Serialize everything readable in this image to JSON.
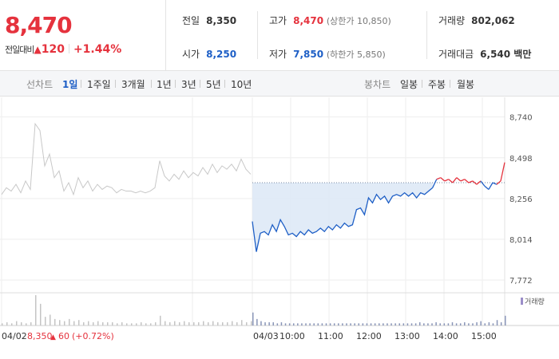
{
  "summary": {
    "price": "8,470",
    "change_label": "전일대비",
    "change_icon": "up-triangle-icon",
    "change_value": "120",
    "change_percent": "+1.44%",
    "prev_close": {
      "label": "전일",
      "value": "8,350"
    },
    "open": {
      "label": "시가",
      "value": "8,250"
    },
    "high": {
      "label": "고가",
      "value": "8,470",
      "note": "(상한가 10,850)"
    },
    "low": {
      "label": "저가",
      "value": "7,850",
      "note": "(하한가 5,850)"
    },
    "volume": {
      "label": "거래량",
      "value": "802,062"
    },
    "amount": {
      "label": "거래대금",
      "value": "6,540 백만"
    }
  },
  "toolbar": {
    "line_chart_label": "선차트",
    "periods": [
      "1일",
      "1주일",
      "3개월",
      "1년",
      "3년",
      "5년",
      "10년"
    ],
    "active_period": "1일",
    "candle_chart_label": "봉차트",
    "candles": [
      "일봉",
      "주봉",
      "월봉"
    ]
  },
  "colors": {
    "up": "#e5323d",
    "down": "#1e5fc6",
    "prev_day_line": "#c8c8c8",
    "fill": "#dce8f6"
  },
  "chart_data": {
    "type": "line",
    "y_ticks": [
      7772,
      8014,
      8256,
      8498,
      8740
    ],
    "y_tick_labels": [
      "7,772",
      "8,014",
      "8,256",
      "8,498",
      "8,740"
    ],
    "ylim": [
      7720,
      8800
    ],
    "baseline": 8350,
    "x_labels": [
      "04/03",
      "10:00",
      "11:00",
      "12:00",
      "13:00",
      "14:00",
      "15:00"
    ],
    "prev_day_label": "04/02",
    "prev_day_info": {
      "price": "8,350",
      "change": "60",
      "percent": "(+0.72%)"
    },
    "volume_legend": "거래량",
    "grid": true,
    "series": [
      {
        "values": [
          8280,
          8320,
          8300,
          8340,
          8290,
          8360,
          8310,
          8700,
          8660,
          8450,
          8520,
          8380,
          8420,
          8300,
          8350,
          8280,
          8380,
          8320,
          8360,
          8300,
          8340,
          8310,
          8330,
          8320,
          8290,
          8310,
          8300,
          8300,
          8290,
          8300,
          8290,
          8300,
          8320,
          8480,
          8390,
          8360,
          8400,
          8370,
          8420,
          8380,
          8410,
          8390,
          8440,
          8400,
          8460,
          8410,
          8450,
          8430,
          8460,
          8420,
          8490,
          8430,
          8400
        ]
      },
      {
        "values": [
          8120,
          7940,
          8050,
          8060,
          8040,
          8100,
          8060,
          8130,
          8090,
          8040,
          8050,
          8030,
          8060,
          8040,
          8070,
          8050,
          8060,
          8080,
          8060,
          8090,
          8070,
          8100,
          8080,
          8110,
          8090,
          8100,
          8190,
          8200,
          8160,
          8260,
          8230,
          8280,
          8250,
          8270,
          8230,
          8270,
          8280,
          8270,
          8290,
          8270,
          8290,
          8260,
          8290,
          8280,
          8300,
          8320
        ]
      },
      {
        "values": [
          8370,
          8380,
          8360,
          8370,
          8350,
          8380,
          8360,
          8370,
          8350,
          8360,
          8340,
          8360,
          8330,
          8310,
          8350,
          8340,
          8360,
          8470
        ]
      }
    ],
    "volume_prev": [
      2,
      3,
      2,
      4,
      3,
      2,
      3,
      28,
      20,
      8,
      10,
      6,
      5,
      4,
      6,
      4,
      5,
      3,
      4,
      3,
      4,
      3,
      3,
      3,
      2,
      3,
      2,
      2,
      2,
      3,
      2,
      2,
      3,
      9,
      4,
      3,
      4,
      3,
      4,
      3,
      3,
      3,
      4,
      3,
      4,
      3,
      3,
      3,
      4,
      3,
      5,
      3,
      4
    ],
    "volume_today": [
      12,
      6,
      4,
      3,
      3,
      3,
      2,
      3,
      2,
      2,
      2,
      2,
      2,
      2,
      2,
      2,
      2,
      2,
      2,
      2,
      2,
      2,
      2,
      2,
      2,
      2,
      2,
      2,
      2,
      2,
      2,
      2,
      2,
      2,
      2,
      2,
      2,
      2,
      2,
      2,
      2,
      3,
      2,
      2,
      2,
      3,
      2,
      2,
      2,
      3,
      2,
      2,
      3,
      2,
      2,
      3,
      4,
      2,
      3,
      2,
      5,
      3,
      9
    ]
  }
}
